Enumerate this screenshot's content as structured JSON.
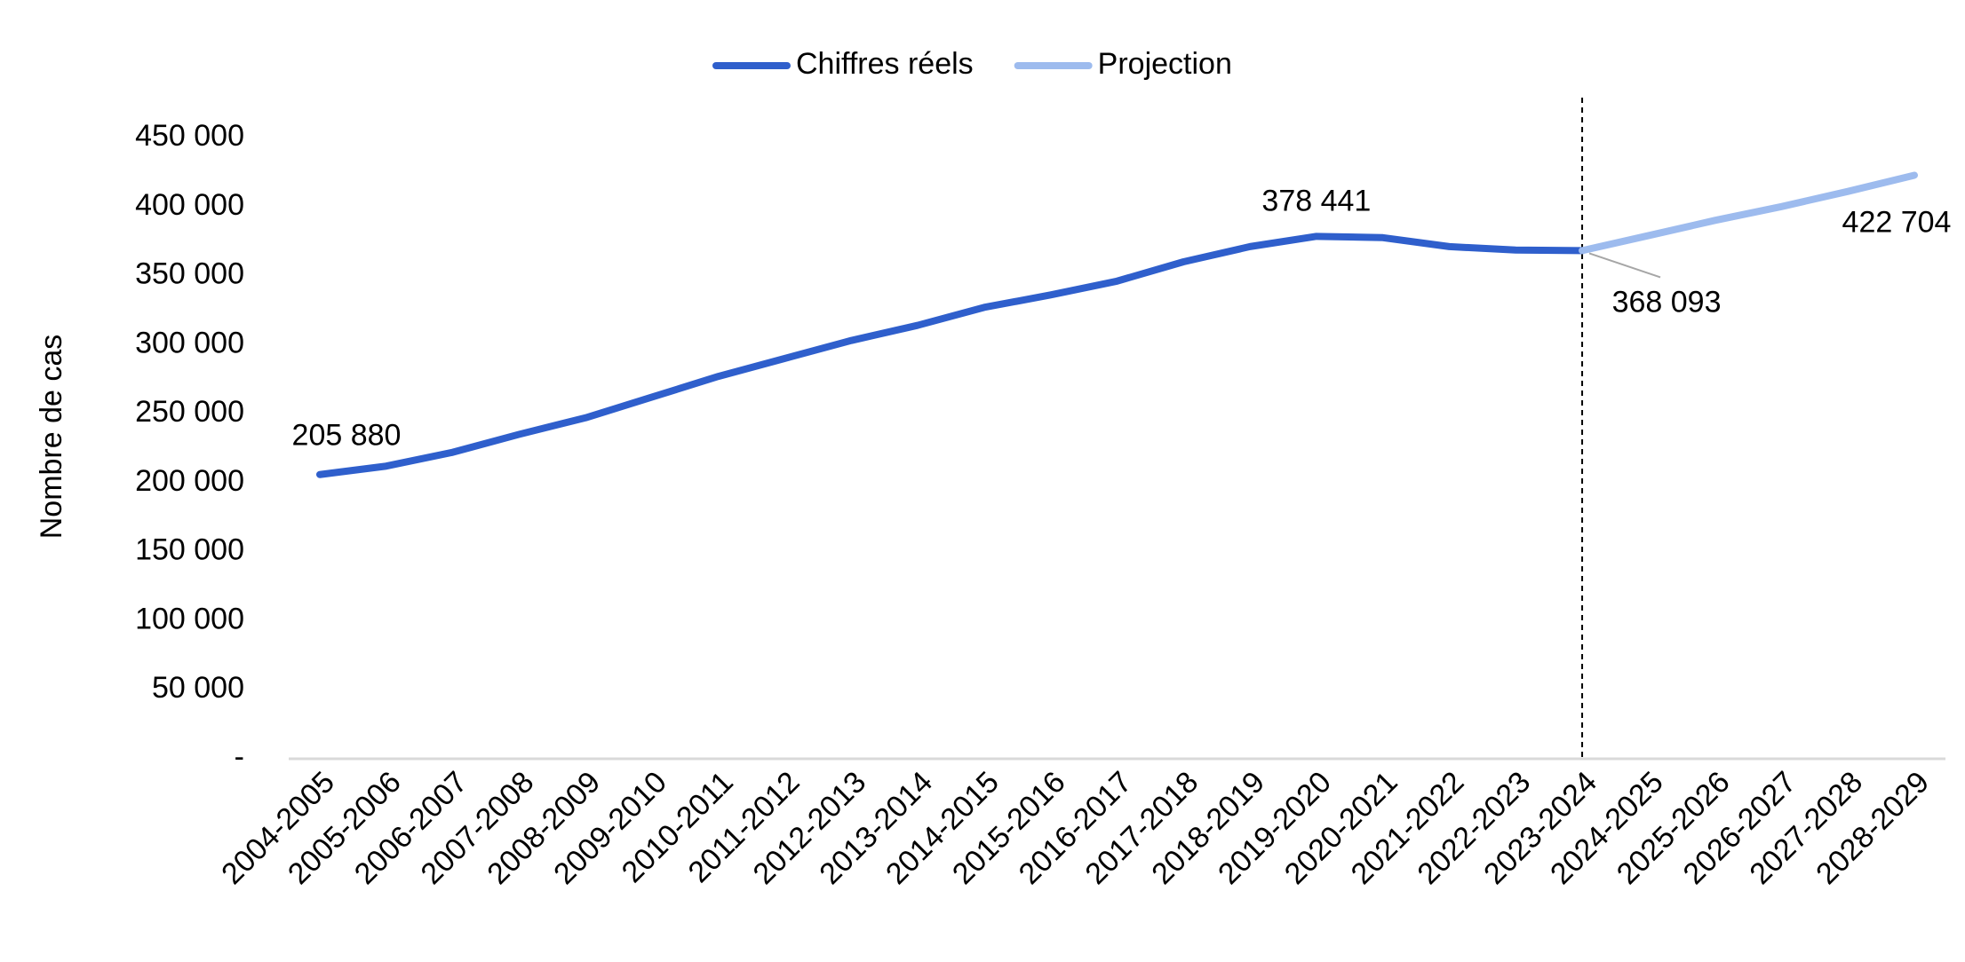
{
  "chart_data": {
    "type": "line",
    "ylabel": "Nombre de cas",
    "categories": [
      "2004-2005",
      "2005-2006",
      "2006-2007",
      "2007-2008",
      "2008-2009",
      "2009-2010",
      "2010-2011",
      "2011-2012",
      "2012-2013",
      "2013-2014",
      "2014-2015",
      "2015-2016",
      "2016-2017",
      "2017-2018",
      "2018-2019",
      "2019-2020",
      "2020-2021",
      "2021-2022",
      "2022-2023",
      "2023-2024",
      "2024-2025",
      "2025-2026",
      "2026-2027",
      "2027-2028",
      "2028-2029"
    ],
    "series": [
      {
        "name": "Chiffres réels",
        "color": "#2f5fcc",
        "values": [
          205880,
          212000,
          222000,
          235000,
          247000,
          262000,
          277000,
          290000,
          303000,
          314000,
          327000,
          336000,
          346000,
          360000,
          371000,
          378441,
          377500,
          371000,
          368500,
          368093,
          null,
          null,
          null,
          null,
          null
        ],
        "value_labels": [
          "205 880",
          null,
          null,
          null,
          null,
          null,
          null,
          null,
          null,
          null,
          null,
          null,
          null,
          null,
          null,
          "378 441",
          null,
          null,
          null,
          "368 093",
          null,
          null,
          null,
          null,
          null
        ]
      },
      {
        "name": "Projection",
        "color": "#9dbbee",
        "values": [
          null,
          null,
          null,
          null,
          null,
          null,
          null,
          null,
          null,
          null,
          null,
          null,
          null,
          null,
          null,
          null,
          null,
          null,
          null,
          368093,
          379000,
          390000,
          400000,
          411000,
          422704
        ],
        "value_labels": [
          null,
          null,
          null,
          null,
          null,
          null,
          null,
          null,
          null,
          null,
          null,
          null,
          null,
          null,
          null,
          null,
          null,
          null,
          null,
          null,
          null,
          null,
          null,
          null,
          "422 704"
        ]
      }
    ],
    "ylim": [
      0,
      450000
    ],
    "yticks": [
      {
        "value": 0,
        "label": "-"
      },
      {
        "value": 50000,
        "label": "50 000"
      },
      {
        "value": 100000,
        "label": "100 000"
      },
      {
        "value": 150000,
        "label": "150 000"
      },
      {
        "value": 200000,
        "label": "200 000"
      },
      {
        "value": 250000,
        "label": "250 000"
      },
      {
        "value": 300000,
        "label": "300 000"
      },
      {
        "value": 350000,
        "label": "350 000"
      },
      {
        "value": 400000,
        "label": "400 000"
      },
      {
        "value": 450000,
        "label": "450 000"
      }
    ],
    "grid": false,
    "legend": "top"
  }
}
